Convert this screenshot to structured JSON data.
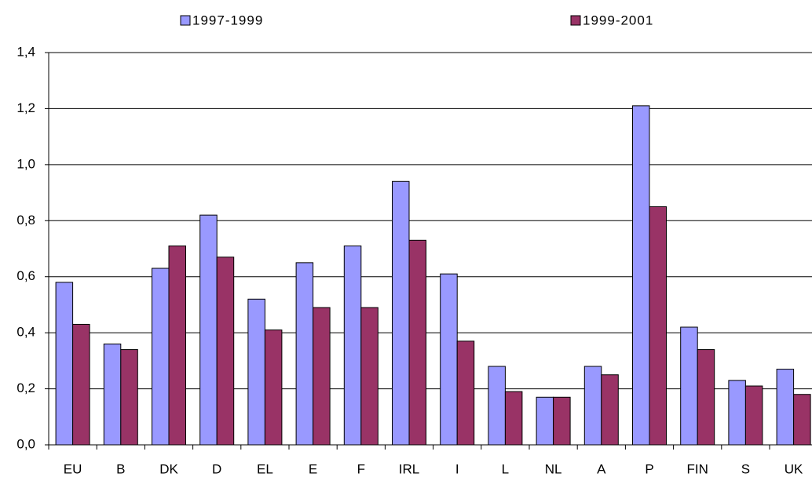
{
  "chart_data": {
    "type": "bar",
    "categories": [
      "EU",
      "B",
      "DK",
      "D",
      "EL",
      "E",
      "F",
      "IRL",
      "I",
      "L",
      "NL",
      "A",
      "P",
      "FIN",
      "S",
      "UK"
    ],
    "series": [
      {
        "name": "1997-1999",
        "color": "#9999ff",
        "values": [
          0.58,
          0.36,
          0.63,
          0.82,
          0.52,
          0.65,
          0.71,
          0.94,
          0.61,
          0.28,
          0.17,
          0.28,
          1.21,
          0.42,
          0.23,
          0.27
        ]
      },
      {
        "name": "1999-2001",
        "color": "#993366",
        "values": [
          0.43,
          0.34,
          0.71,
          0.67,
          0.41,
          0.49,
          0.49,
          0.73,
          0.37,
          0.19,
          0.17,
          0.25,
          0.85,
          0.34,
          0.21,
          0.18
        ]
      }
    ],
    "ylim": [
      0,
      1.4
    ],
    "yticks": [
      {
        "value": 0,
        "label": "0,0"
      },
      {
        "value": 0.2,
        "label": "0,2"
      },
      {
        "value": 0.4,
        "label": "0,4"
      },
      {
        "value": 0.6,
        "label": "0,6"
      },
      {
        "value": 0.8,
        "label": "0,8"
      },
      {
        "value": 1.0,
        "label": "1,0"
      },
      {
        "value": 1.2,
        "label": "1,2"
      },
      {
        "value": 1.4,
        "label": "1,4"
      }
    ],
    "grid": true
  }
}
